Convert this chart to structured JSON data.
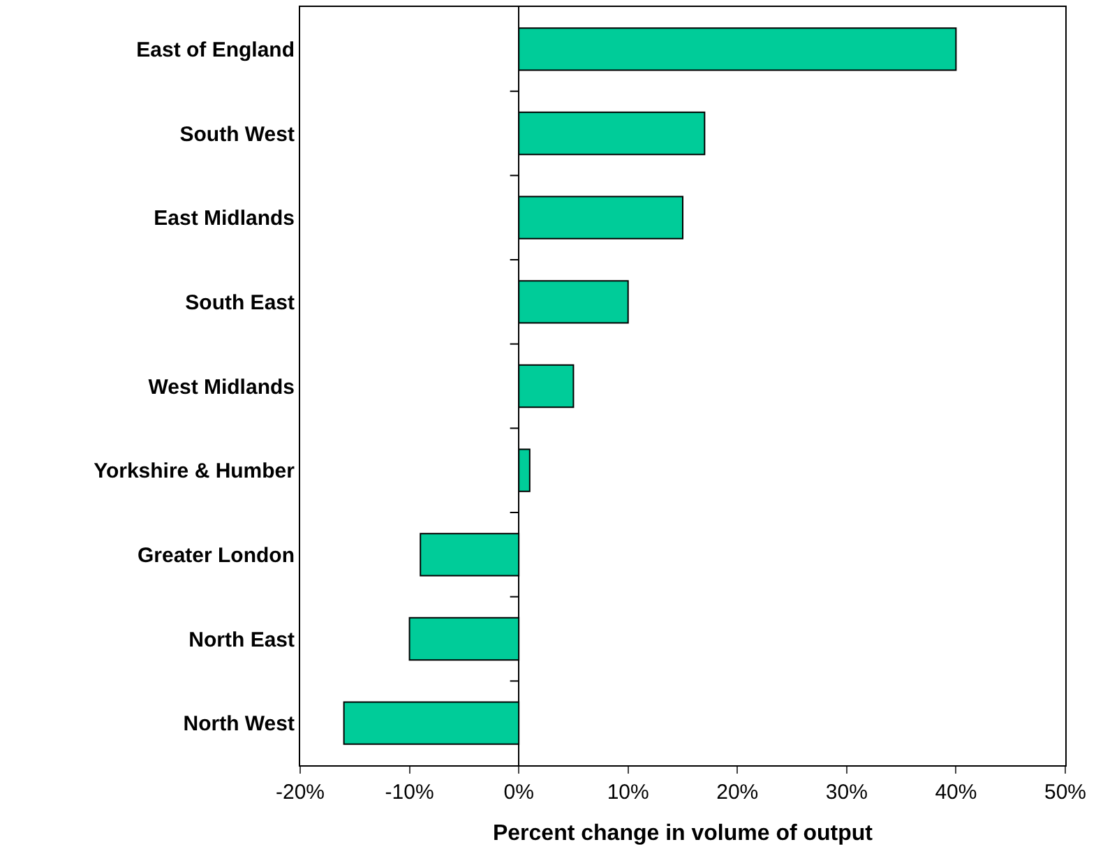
{
  "chart_data": {
    "type": "bar",
    "orientation": "horizontal",
    "xlabel": "Percent change in volume of output",
    "categories": [
      "East of England",
      "South West",
      "East Midlands",
      "South East",
      "West Midlands",
      "Yorkshire & Humber",
      "Greater London",
      "North East",
      "North West"
    ],
    "values": [
      40,
      17,
      15,
      10,
      5,
      1,
      -9,
      -10,
      -16
    ],
    "color": "#00cc99",
    "xlim": [
      -20,
      50
    ],
    "xticks": [
      {
        "value": -20,
        "label": "-20%"
      },
      {
        "value": -10,
        "label": "-10%"
      },
      {
        "value": 0,
        "label": "0%"
      },
      {
        "value": 10,
        "label": "10%"
      },
      {
        "value": 20,
        "label": "20%"
      },
      {
        "value": 30,
        "label": "30%"
      },
      {
        "value": 40,
        "label": "40%"
      },
      {
        "value": 50,
        "label": "50%"
      }
    ],
    "legend": false
  }
}
